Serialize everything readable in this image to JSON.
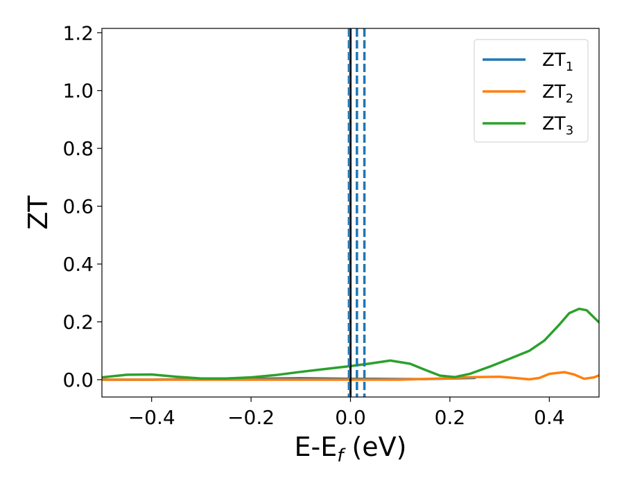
{
  "chart_data": {
    "type": "line",
    "xlabel": "E-E",
    "xlabel_sub": "f",
    "xlabel_unit": " (eV)",
    "ylabel": "ZT",
    "xlim": [
      -0.5,
      0.5
    ],
    "ylim": [
      -0.06,
      1.215
    ],
    "grid": false,
    "legend_position": "top-right",
    "x_ticks": [
      -0.4,
      -0.2,
      0.0,
      0.2,
      0.4
    ],
    "x_tick_labels": [
      "−0.4",
      "−0.2",
      "0.0",
      "0.2",
      "0.4"
    ],
    "y_ticks": [
      0.0,
      0.2,
      0.4,
      0.6,
      0.8,
      1.0,
      1.2
    ],
    "y_tick_labels": [
      "0.0",
      "0.2",
      "0.4",
      "0.6",
      "0.8",
      "1.0",
      "1.2"
    ],
    "vertical_lines": [
      {
        "x": 0.0,
        "style": "solid",
        "color": "#000000"
      },
      {
        "x": -0.003,
        "style": "dashed",
        "color": "#1f77b4"
      },
      {
        "x": 0.013,
        "style": "dashed",
        "color": "#1f77b4"
      },
      {
        "x": 0.028,
        "style": "dashed",
        "color": "#1f77b4"
      }
    ],
    "series": [
      {
        "name": "ZT",
        "sub": "1",
        "color": "#1f77b4",
        "x": [
          -0.5,
          -0.4,
          -0.3,
          -0.2,
          -0.15,
          -0.1,
          -0.05,
          0.0,
          0.05,
          0.1,
          0.15,
          0.2,
          0.25
        ],
        "y": [
          0.0,
          0.0,
          0.002,
          0.003,
          0.004,
          0.005,
          0.004,
          0.003,
          0.003,
          0.002,
          0.002,
          0.004,
          0.006
        ]
      },
      {
        "name": "ZT",
        "sub": "2",
        "color": "#ff7f0e",
        "x": [
          -0.5,
          -0.4,
          -0.3,
          -0.2,
          -0.1,
          0.0,
          0.1,
          0.2,
          0.22,
          0.25,
          0.3,
          0.33,
          0.36,
          0.38,
          0.4,
          0.43,
          0.45,
          0.47,
          0.49,
          0.5
        ],
        "y": [
          0.0,
          0.0,
          0.0,
          0.0,
          0.0,
          0.0,
          0.0,
          0.005,
          0.007,
          0.009,
          0.01,
          0.006,
          0.001,
          0.006,
          0.02,
          0.026,
          0.018,
          0.003,
          0.008,
          0.015
        ]
      },
      {
        "name": "ZT",
        "sub": "3",
        "color": "#2ca02c",
        "x": [
          -0.5,
          -0.45,
          -0.4,
          -0.35,
          -0.3,
          -0.25,
          -0.2,
          -0.15,
          -0.1,
          -0.05,
          0.0,
          0.04,
          0.08,
          0.12,
          0.15,
          0.18,
          0.21,
          0.24,
          0.28,
          0.32,
          0.36,
          0.39,
          0.42,
          0.44,
          0.46,
          0.475,
          0.49,
          0.5
        ],
        "y": [
          0.008,
          0.017,
          0.018,
          0.01,
          0.004,
          0.004,
          0.008,
          0.016,
          0.027,
          0.037,
          0.047,
          0.056,
          0.066,
          0.055,
          0.034,
          0.014,
          0.009,
          0.02,
          0.045,
          0.072,
          0.1,
          0.135,
          0.19,
          0.23,
          0.245,
          0.24,
          0.215,
          0.198
        ]
      }
    ]
  }
}
